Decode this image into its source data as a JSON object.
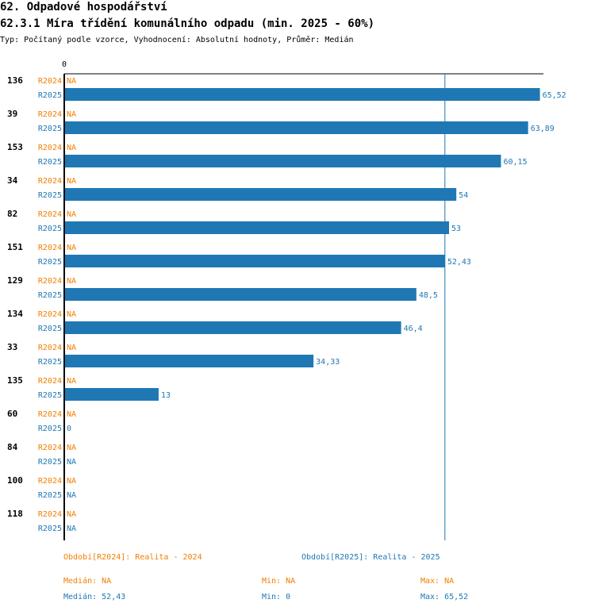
{
  "header": {
    "title": "62. Odpadové hospodářství",
    "subtitle": "62.3.1 Míra třídění komunálního odpadu (min. 2025 - 60%)",
    "info": "Typ: Počítaný podle vzorce, Vyhodnocení: Absolutní hodnoty, Průměr: Medián"
  },
  "colors": {
    "r2024": "#f07f00",
    "r2025": "#1f78b4"
  },
  "chart_data": {
    "type": "bar",
    "orientation": "horizontal",
    "axis_zero_label": "0",
    "xlim": [
      0,
      66
    ],
    "reference_line": 52.43,
    "series_labels": [
      "R2024",
      "R2025"
    ],
    "categories": [
      "136",
      "39",
      "153",
      "34",
      "82",
      "151",
      "129",
      "134",
      "33",
      "135",
      "60",
      "84",
      "100",
      "118"
    ],
    "series": [
      {
        "name": "R2024",
        "values": [
          null,
          null,
          null,
          null,
          null,
          null,
          null,
          null,
          null,
          null,
          null,
          null,
          null,
          null
        ],
        "labels": [
          "NA",
          "NA",
          "NA",
          "NA",
          "NA",
          "NA",
          "NA",
          "NA",
          "NA",
          "NA",
          "NA",
          "NA",
          "NA",
          "NA"
        ]
      },
      {
        "name": "R2025",
        "values": [
          65.52,
          63.89,
          60.15,
          54,
          53,
          52.43,
          48.5,
          46.4,
          34.33,
          13,
          0,
          null,
          null,
          null
        ],
        "labels": [
          "65,52",
          "63,89",
          "60,15",
          "54",
          "53",
          "52,43",
          "48,5",
          "46,4",
          "34,33",
          "13",
          "0",
          "NA",
          "NA",
          "NA"
        ]
      }
    ]
  },
  "legend": {
    "period_2024": "Období[R2024]: Realita - 2024",
    "period_2025": "Období[R2025]: Realita - 2025",
    "median_2024": "Medián: NA",
    "min_2024": "Min: NA",
    "max_2024": "Max: NA",
    "median_2025": "Medián: 52,43",
    "min_2025": "Min: 0",
    "max_2025": "Max: 65,52"
  }
}
